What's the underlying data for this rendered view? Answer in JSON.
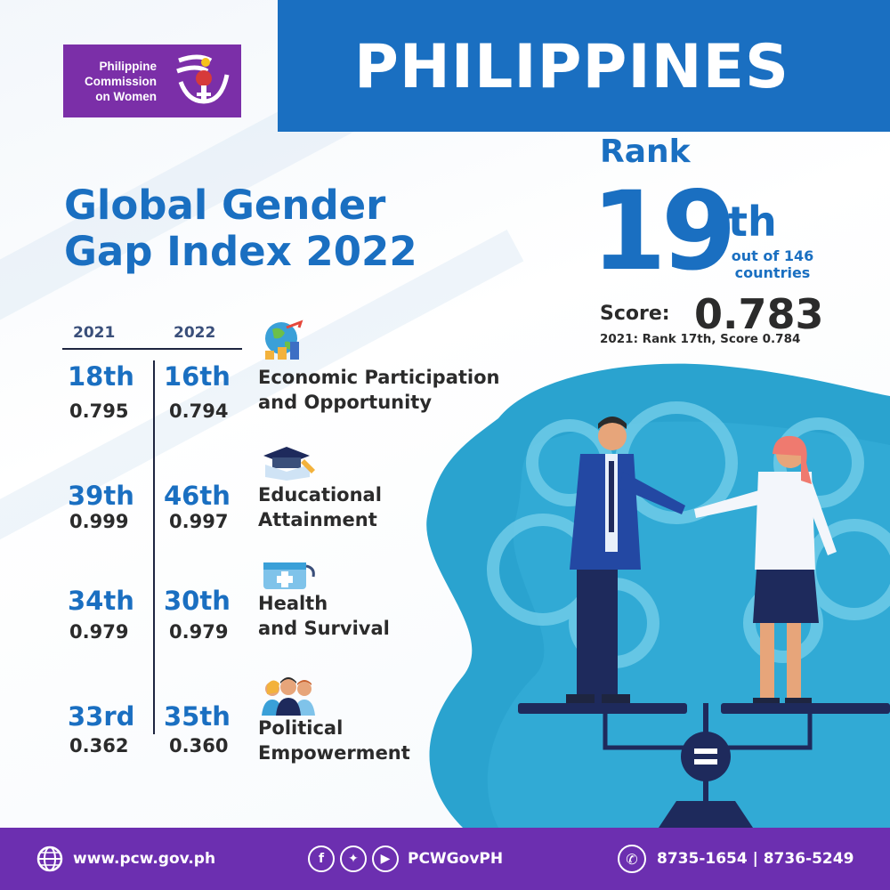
{
  "logo": {
    "text": "Philippine\nCommission\non Women"
  },
  "header": {
    "country": "PHILIPPINES"
  },
  "main_title": "Global Gender\nGap Index 2022",
  "rank": {
    "label": "Rank",
    "number": "19",
    "suffix": "th",
    "out_of": "out of 146\ncountries",
    "score_label": "Score:",
    "score_value": "0.783",
    "previous": "2021: Rank 17th, Score 0.784"
  },
  "table": {
    "year_2021": "2021",
    "year_2022": "2022",
    "rows": [
      {
        "rank_2021": "18th",
        "score_2021": "0.795",
        "rank_2022": "16th",
        "score_2022": "0.794",
        "category": "Economic Participation\nand Opportunity",
        "icon": "globe-growth-icon"
      },
      {
        "rank_2021": "39th",
        "score_2021": "0.999",
        "rank_2022": "46th",
        "score_2022": "0.997",
        "category": "Educational\nAttainment",
        "icon": "graduation-cap-book-icon"
      },
      {
        "rank_2021": "34th",
        "score_2021": "0.979",
        "rank_2022": "30th",
        "score_2022": "0.979",
        "category": "Health\nand Survival",
        "icon": "medical-kit-icon"
      },
      {
        "rank_2021": "33rd",
        "score_2021": "0.362",
        "rank_2022": "35th",
        "score_2022": "0.360",
        "category": "Political\nEmpowerment",
        "icon": "people-group-icon"
      }
    ]
  },
  "footer": {
    "website": "www.pcw.gov.ph",
    "social_handle": "PCWGovPH",
    "phones": "8735-1654 | 8736-5249"
  },
  "colors": {
    "primary_blue": "#1a6fc1",
    "purple": "#7b2fa8",
    "footer_purple": "#6c2fb0",
    "dark_text": "#2b2b2b",
    "teal": "#2aa3cf"
  }
}
